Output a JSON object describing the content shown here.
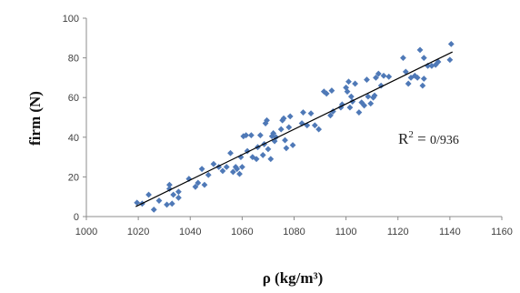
{
  "chart_data": {
    "type": "scatter",
    "xlabel": "ρ (kg/m³)",
    "ylabel": "firm (N)",
    "xlim": [
      1000,
      1160
    ],
    "ylim": [
      0,
      100
    ],
    "x_ticks": [
      "1000",
      "1020",
      "1040",
      "1060",
      "1080",
      "1100",
      "1120",
      "1140",
      "1160"
    ],
    "y_ticks": [
      "0",
      "20",
      "40",
      "60",
      "80",
      "100"
    ],
    "grid": false,
    "marker_color": "#4f79b7",
    "trendline": {
      "type": "linear",
      "x": [
        1019,
        1141
      ],
      "y": [
        5,
        83
      ],
      "color": "#000000"
    },
    "annotation": {
      "prefix": "R",
      "superscript": "2",
      "equals": " = ",
      "value": "0/936"
    },
    "points": [
      [
        1019.5,
        7
      ],
      [
        1021.5,
        6.5
      ],
      [
        1024,
        11
      ],
      [
        1026,
        3.5
      ],
      [
        1028,
        8
      ],
      [
        1031,
        6
      ],
      [
        1032,
        14
      ],
      [
        1032,
        16
      ],
      [
        1033,
        6.5
      ],
      [
        1033.5,
        11
      ],
      [
        1035.5,
        9.5
      ],
      [
        1035.5,
        12.5
      ],
      [
        1039.5,
        19
      ],
      [
        1042,
        15
      ],
      [
        1043,
        17
      ],
      [
        1044.5,
        24
      ],
      [
        1045.5,
        16
      ],
      [
        1047,
        21
      ],
      [
        1049,
        26.5
      ],
      [
        1051,
        25
      ],
      [
        1052.5,
        23
      ],
      [
        1054,
        25
      ],
      [
        1055.5,
        32
      ],
      [
        1056.5,
        22.5
      ],
      [
        1057.5,
        25
      ],
      [
        1058,
        24
      ],
      [
        1059,
        21.5
      ],
      [
        1059.5,
        30
      ],
      [
        1060,
        25
      ],
      [
        1060.5,
        40.5
      ],
      [
        1061.5,
        41
      ],
      [
        1062,
        33
      ],
      [
        1063.5,
        41
      ],
      [
        1064,
        30
      ],
      [
        1065.5,
        29
      ],
      [
        1066,
        35
      ],
      [
        1067,
        41
      ],
      [
        1068,
        31
      ],
      [
        1068.5,
        36.5
      ],
      [
        1069,
        47
      ],
      [
        1069.5,
        48.5
      ],
      [
        1070,
        34
      ],
      [
        1071,
        29
      ],
      [
        1071.5,
        40.5
      ],
      [
        1072,
        42
      ],
      [
        1072.5,
        38
      ],
      [
        1073,
        40
      ],
      [
        1075,
        44
      ],
      [
        1075.5,
        48.5
      ],
      [
        1076,
        49.5
      ],
      [
        1076.5,
        38.5
      ],
      [
        1077,
        34.5
      ],
      [
        1078,
        45
      ],
      [
        1078.5,
        50.5
      ],
      [
        1079.5,
        36
      ],
      [
        1083,
        47
      ],
      [
        1083.5,
        52.5
      ],
      [
        1085,
        46
      ],
      [
        1086.5,
        52
      ],
      [
        1088,
        46
      ],
      [
        1089.5,
        44
      ],
      [
        1091.5,
        63
      ],
      [
        1092.5,
        62
      ],
      [
        1094,
        51
      ],
      [
        1094.5,
        63.5
      ],
      [
        1095,
        53
      ],
      [
        1098,
        55
      ],
      [
        1098.5,
        56.5
      ],
      [
        1100,
        65
      ],
      [
        1100.5,
        63
      ],
      [
        1101,
        68
      ],
      [
        1101.5,
        55
      ],
      [
        1102,
        60.5
      ],
      [
        1102.5,
        58
      ],
      [
        1103.5,
        67
      ],
      [
        1105,
        52.5
      ],
      [
        1106,
        57.5
      ],
      [
        1107,
        56
      ],
      [
        1108,
        69
      ],
      [
        1108.5,
        60.5
      ],
      [
        1109.5,
        57
      ],
      [
        1110.5,
        60
      ],
      [
        1111,
        61
      ],
      [
        1111.5,
        70
      ],
      [
        1112.5,
        72
      ],
      [
        1113.5,
        66
      ],
      [
        1114.5,
        71
      ],
      [
        1116.5,
        70.5
      ],
      [
        1122,
        80
      ],
      [
        1123,
        73
      ],
      [
        1124,
        67
      ],
      [
        1125,
        70
      ],
      [
        1126.5,
        71
      ],
      [
        1127.5,
        70
      ],
      [
        1128.5,
        84
      ],
      [
        1129.5,
        66
      ],
      [
        1130,
        69.5
      ],
      [
        1130,
        80
      ],
      [
        1131.5,
        76
      ],
      [
        1133,
        76
      ],
      [
        1134.5,
        76.5
      ],
      [
        1135.5,
        78
      ],
      [
        1140,
        79
      ],
      [
        1140.5,
        87
      ]
    ]
  }
}
